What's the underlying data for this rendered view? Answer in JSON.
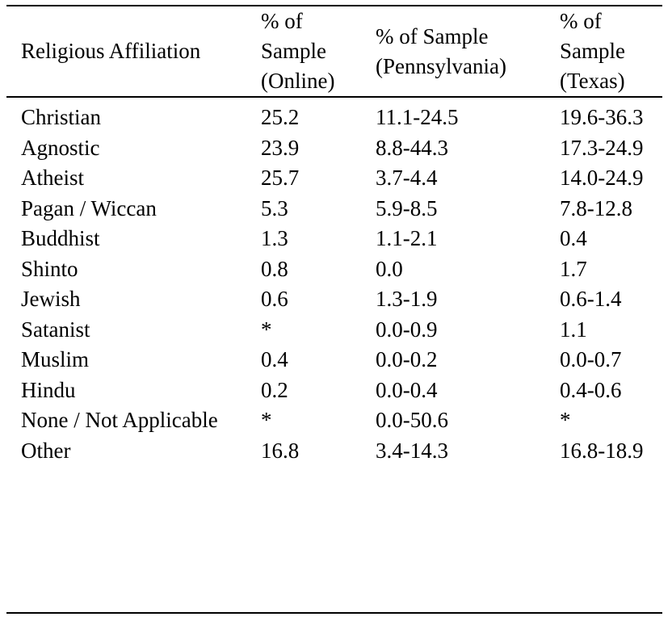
{
  "table": {
    "headers": [
      "Religious Affiliation",
      "% of Sample (Online)",
      "% of Sample (Pennsylvania)",
      "% of Sample (Texas)"
    ],
    "rows": [
      [
        "Christian",
        "25.2",
        "11.1-24.5",
        "19.6-36.3"
      ],
      [
        "Agnostic",
        "23.9",
        "8.8-44.3",
        "17.3-24.9"
      ],
      [
        "Atheist",
        "25.7",
        "3.7-4.4",
        "14.0-24.9"
      ],
      [
        "Pagan / Wiccan",
        "5.3",
        "5.9-8.5",
        "7.8-12.8"
      ],
      [
        "Buddhist",
        "1.3",
        "1.1-2.1",
        "0.4"
      ],
      [
        "Shinto",
        "0.8",
        "0.0",
        "1.7"
      ],
      [
        "Jewish",
        "0.6",
        "1.3-1.9",
        "0.6-1.4"
      ],
      [
        "Satanist",
        "*",
        "0.0-0.9",
        "1.1"
      ],
      [
        "Muslim",
        "0.4",
        "0.0-0.2",
        "0.0-0.7"
      ],
      [
        "Hindu",
        "0.2",
        "0.0-0.4",
        "0.4-0.6"
      ],
      [
        "None / Not Applicable",
        "*",
        "0.0-50.6",
        "*"
      ],
      [
        "Other",
        "16.8",
        "3.4-14.3",
        "16.8-18.9"
      ]
    ]
  }
}
